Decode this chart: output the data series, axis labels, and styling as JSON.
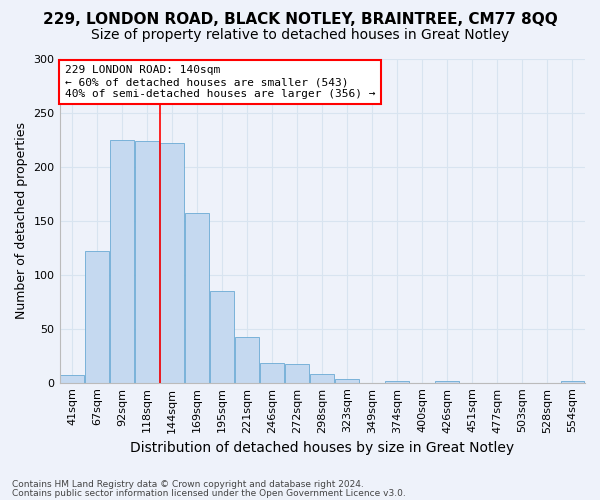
{
  "title1": "229, LONDON ROAD, BLACK NOTLEY, BRAINTREE, CM77 8QQ",
  "title2": "Size of property relative to detached houses in Great Notley",
  "xlabel": "Distribution of detached houses by size in Great Notley",
  "ylabel": "Number of detached properties",
  "bar_labels": [
    "41sqm",
    "67sqm",
    "92sqm",
    "118sqm",
    "144sqm",
    "169sqm",
    "195sqm",
    "221sqm",
    "246sqm",
    "272sqm",
    "298sqm",
    "323sqm",
    "349sqm",
    "374sqm",
    "400sqm",
    "426sqm",
    "451sqm",
    "477sqm",
    "503sqm",
    "528sqm",
    "554sqm"
  ],
  "bar_values": [
    7,
    122,
    225,
    224,
    222,
    157,
    85,
    42,
    18,
    17,
    8,
    3,
    0,
    2,
    0,
    2,
    0,
    0,
    0,
    0,
    2
  ],
  "bar_color": "#c5d9f0",
  "bar_edge_color": "#6aaad4",
  "red_line_index": 4,
  "ylim": [
    0,
    300
  ],
  "yticks": [
    0,
    50,
    100,
    150,
    200,
    250,
    300
  ],
  "annotation_title": "229 LONDON ROAD: 140sqm",
  "annotation_line1": "← 60% of detached houses are smaller (543)",
  "annotation_line2": "40% of semi-detached houses are larger (356) →",
  "footer1": "Contains HM Land Registry data © Crown copyright and database right 2024.",
  "footer2": "Contains public sector information licensed under the Open Government Licence v3.0.",
  "background_color": "#eef2fa",
  "grid_color": "#d8e4f0",
  "title_fontsize": 11,
  "subtitle_fontsize": 10,
  "xlabel_fontsize": 10,
  "ylabel_fontsize": 9,
  "tick_fontsize": 8,
  "annot_fontsize": 8,
  "footer_fontsize": 6.5
}
